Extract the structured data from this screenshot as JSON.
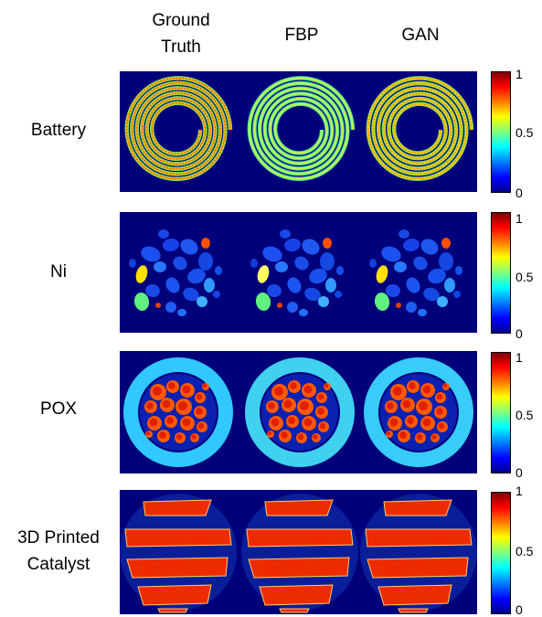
{
  "columns": [
    "Ground Truth",
    "FBP",
    "GAN"
  ],
  "rows": [
    {
      "label": "Battery",
      "image": "battery-spiral-reconstruction"
    },
    {
      "label": "Ni",
      "image": "ni-particles-reconstruction"
    },
    {
      "label": "POX",
      "image": "pox-catalyst-reconstruction"
    },
    {
      "label": "3D Printed Catalyst",
      "image": "printed-catalyst-reconstruction"
    }
  ],
  "colorbar": {
    "ticks": [
      "1",
      "0.5",
      "0"
    ],
    "colormap": "jet",
    "colors": [
      "#7f0000",
      "#ff0000",
      "#ffff00",
      "#00ffff",
      "#0000ff",
      "#00008f"
    ]
  },
  "background_color": "#00007a"
}
